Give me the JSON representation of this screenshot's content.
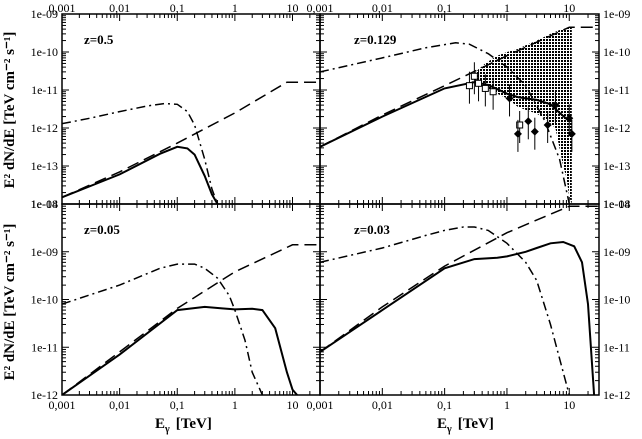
{
  "figure": {
    "xlabel_main": "E",
    "xlabel_sub": "γ",
    "xlabel_unit": "[TeV]",
    "ylabel_left_top": "E² dN/dE [TeV cm⁻² s⁻¹]",
    "ylabel_left_bottom": "E² dN/dE [TeV cm⁻² s⁻¹]"
  },
  "chart_data": [
    {
      "type": "line",
      "panel": "top-left",
      "annotation": "z=0.5",
      "xscale": "log",
      "yscale": "log",
      "xlim": [
        0.001,
        30
      ],
      "ylim": [
        1e-14,
        1e-09
      ],
      "x_ticks": [
        "0,001",
        "0,01",
        "0,1",
        "1",
        "10"
      ],
      "y_ticks": [
        "1e-14",
        "1e-13",
        "1e-12",
        "1e-11",
        "1e-10",
        "1e-09"
      ],
      "series": [
        {
          "style": "solid",
          "x": [
            0.001,
            0.01,
            0.05,
            0.1,
            0.15,
            0.2,
            0.3,
            0.4,
            0.5
          ],
          "y": [
            1.5e-14,
            6e-14,
            2.1e-13,
            3.2e-13,
            2.9e-13,
            2e-13,
            5.5e-14,
            1.8e-14,
            1e-14
          ]
        },
        {
          "style": "dashed",
          "x": [
            0.001,
            0.01,
            0.1,
            1,
            8,
            30
          ],
          "y": [
            1.5e-14,
            7e-14,
            4e-13,
            2.5e-12,
            1.6e-11,
            1.6e-11
          ]
        },
        {
          "style": "dash-dot",
          "x": [
            0.001,
            0.003,
            0.01,
            0.03,
            0.06,
            0.1,
            0.15,
            0.2,
            0.3,
            0.4,
            0.5
          ],
          "y": [
            1.3e-12,
            1.8e-12,
            2.7e-12,
            3.8e-12,
            4.4e-12,
            4.2e-12,
            2.7e-12,
            1.2e-12,
            1.5e-13,
            2.5e-14,
            1e-14
          ]
        }
      ]
    },
    {
      "type": "line",
      "panel": "top-right",
      "annotation": "z=0.129",
      "xscale": "log",
      "yscale": "log",
      "xlim": [
        0.001,
        30
      ],
      "ylim": [
        1e-14,
        1e-09
      ],
      "x_ticks": [
        "0,001",
        "0,01",
        "0,1",
        "1",
        "10"
      ],
      "y_ticks": [
        "1e-14",
        "1e-13",
        "1e-12",
        "1e-11",
        "1e-10",
        "1e-09"
      ],
      "series": [
        {
          "style": "solid",
          "x": [
            0.001,
            0.01,
            0.1,
            0.3,
            0.5,
            1,
            1.5,
            2,
            3,
            5,
            7,
            10
          ],
          "y": [
            3.2e-13,
            2e-12,
            1.1e-11,
            1.6e-11,
            1.35e-11,
            8e-12,
            6.5e-12,
            6e-12,
            5.5e-12,
            4.2e-12,
            2.5e-12,
            1.5e-12
          ]
        },
        {
          "style": "dashed",
          "x": [
            0.001,
            0.01,
            0.1,
            1,
            10,
            30
          ],
          "y": [
            3.2e-13,
            2.2e-12,
            1.3e-11,
            8e-11,
            4.5e-10,
            4.5e-10
          ]
        },
        {
          "style": "dash-dot",
          "x": [
            0.001,
            0.01,
            0.05,
            0.15,
            0.25,
            0.5,
            1,
            2,
            4,
            7,
            10
          ],
          "y": [
            3e-11,
            7e-11,
            1.3e-10,
            1.75e-10,
            1.6e-10,
            9e-11,
            4e-11,
            1.3e-11,
            1.6e-12,
            1.5e-13,
            1e-14
          ]
        }
      ],
      "observations": [
        {
          "marker": "open-square",
          "x": [
            0.25,
            0.3,
            0.35,
            0.45,
            0.6,
            1.6
          ],
          "y": [
            1.3e-11,
            2.3e-11,
            1.5e-11,
            1.1e-11,
            9e-12,
            1.2e-12
          ]
        },
        {
          "marker": "filled-diamond",
          "x": [
            1.1,
            1.5,
            2.2,
            2.8,
            4.5,
            6,
            10,
            11
          ],
          "y": [
            6e-12,
            7e-13,
            1.5e-12,
            8e-13,
            1.2e-12,
            4e-12,
            1.8e-12,
            7e-13
          ]
        }
      ]
    },
    {
      "type": "line",
      "panel": "bottom-left",
      "annotation": "z=0.05",
      "xscale": "log",
      "yscale": "log",
      "xlim": [
        0.001,
        30
      ],
      "ylim": [
        1e-12,
        1e-08
      ],
      "x_ticks": [
        "0,001",
        "0,01",
        "0,1",
        "1",
        "10"
      ],
      "y_ticks": [
        "1e-12",
        "1e-11",
        "1e-10",
        "1e-09",
        "1e-08"
      ],
      "series": [
        {
          "style": "solid",
          "x": [
            0.001,
            0.01,
            0.1,
            0.3,
            0.6,
            1,
            2,
            3,
            5,
            8,
            10,
            12
          ],
          "y": [
            1e-12,
            7e-12,
            6e-11,
            7e-11,
            6.5e-11,
            6.2e-11,
            6.4e-11,
            6e-11,
            2.5e-11,
            3e-12,
            1.3e-12,
            1e-12
          ]
        },
        {
          "style": "dashed",
          "x": [
            0.001,
            0.01,
            0.1,
            1,
            10,
            30
          ],
          "y": [
            1e-12,
            8e-12,
            6.5e-11,
            3.8e-10,
            1.4e-09,
            1.4e-09
          ]
        },
        {
          "style": "dash-dot",
          "x": [
            0.001,
            0.01,
            0.05,
            0.1,
            0.2,
            0.3,
            0.5,
            0.8,
            1,
            1.5,
            2,
            3
          ],
          "y": [
            8e-11,
            2e-10,
            4.5e-10,
            5.5e-10,
            5.5e-10,
            4.5e-10,
            2.8e-10,
            1.2e-10,
            6e-11,
            1.4e-11,
            3e-12,
            1e-12
          ]
        }
      ]
    },
    {
      "type": "line",
      "panel": "bottom-right",
      "annotation": "z=0.03",
      "xscale": "log",
      "yscale": "log",
      "xlim": [
        0.001,
        30
      ],
      "ylim": [
        1e-12,
        1e-08
      ],
      "x_ticks": [
        "0,001",
        "0,01",
        "0,1",
        "1",
        "10"
      ],
      "y_ticks": [
        "1e-12",
        "1e-11",
        "1e-10",
        "1e-09",
        "1e-08"
      ],
      "series": [
        {
          "style": "solid",
          "x": [
            0.001,
            0.01,
            0.1,
            0.3,
            0.7,
            1,
            2,
            3,
            5,
            8,
            12,
            16,
            20,
            25
          ],
          "y": [
            8e-12,
            6e-11,
            4.5e-10,
            7e-10,
            7.5e-10,
            8e-10,
            1e-09,
            1.2e-09,
            1.5e-09,
            1.6e-09,
            1.3e-09,
            6e-10,
            8e-11,
            1e-12
          ]
        },
        {
          "style": "dashed",
          "x": [
            0.001,
            0.01,
            0.1,
            1,
            10,
            30
          ],
          "y": [
            8e-12,
            7e-11,
            5e-10,
            2.5e-09,
            9e-09,
            9e-09
          ]
        },
        {
          "style": "dash-dot",
          "x": [
            0.001,
            0.01,
            0.05,
            0.1,
            0.2,
            0.3,
            0.5,
            1,
            2,
            3,
            5,
            8,
            10
          ],
          "y": [
            6e-10,
            1.2e-09,
            2.2e-09,
            2.8e-09,
            3.3e-09,
            3.3e-09,
            2.8e-09,
            1.5e-09,
            6e-10,
            2.5e-10,
            3e-11,
            3e-12,
            1e-12
          ]
        }
      ]
    }
  ]
}
